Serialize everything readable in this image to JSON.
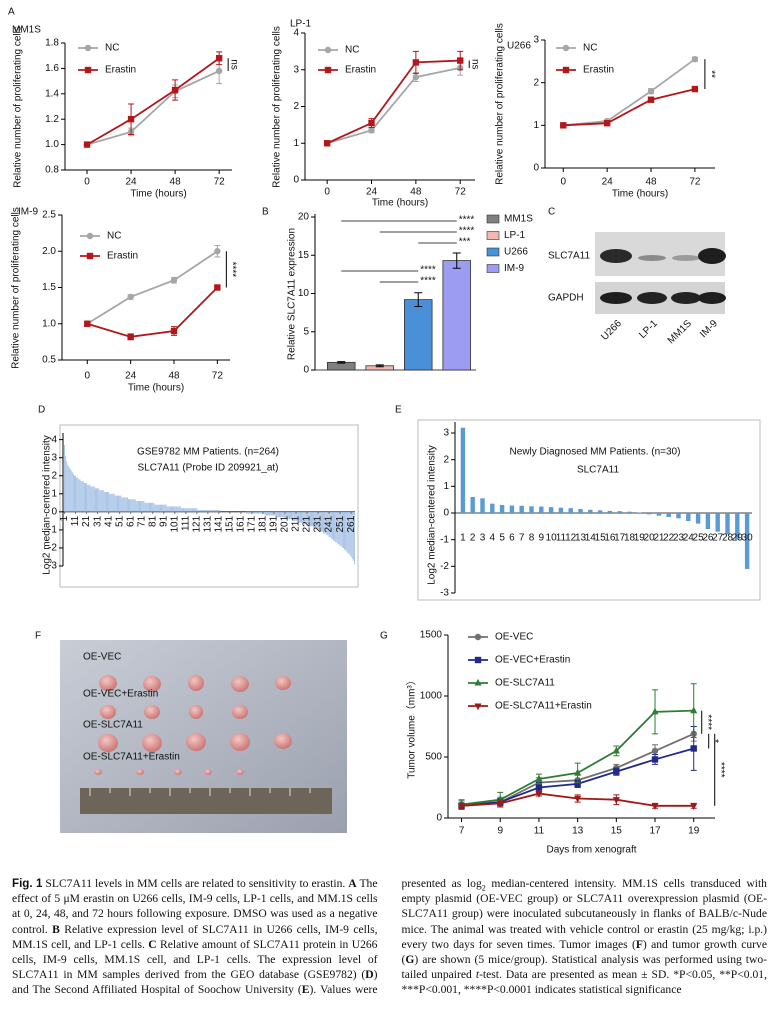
{
  "panels": [
    "A",
    "B",
    "C",
    "D",
    "E",
    "F",
    "G"
  ],
  "chart_data": [
    {
      "type": "line",
      "title": "MM1S",
      "xlabel": "Time (hours)",
      "ylabel": "Relative number of proliferating cells",
      "x": [
        0,
        24,
        48,
        72
      ],
      "xlim": [
        -12,
        79
      ],
      "xticks": [
        0,
        24,
        48,
        72
      ],
      "ylim": [
        0.8,
        1.8
      ],
      "yticks": [
        0.8,
        {
          "value": 1,
          "label": "1.0"
        },
        1.2,
        1.4,
        1.6,
        1.8
      ],
      "legend": "top-left",
      "series": [
        {
          "name": "NC",
          "color": "#a6a6a6",
          "marker": "circle",
          "values": [
            1,
            1.1,
            1.42,
            1.58
          ],
          "errors": [
            0.01,
            0.03,
            0.05,
            0.1
          ]
        },
        {
          "name": "Erastin",
          "color": "#b2181b",
          "marker": "square",
          "values": [
            1,
            1.2,
            1.43,
            1.68
          ],
          "errors": [
            0.01,
            0.12,
            0.08,
            0.05
          ]
        }
      ],
      "annotations": [
        "ns"
      ]
    },
    {
      "type": "line",
      "title": "LP-1",
      "xlabel": "Time (hours)",
      "ylabel": "Relative number of proliferating cells",
      "x": [
        0,
        24,
        48,
        72
      ],
      "xlim": [
        -12,
        80
      ],
      "xticks": [
        0,
        24,
        48,
        72
      ],
      "ylim": [
        0,
        4
      ],
      "yticks": [
        0,
        1,
        2,
        3,
        4
      ],
      "legend": "top-left",
      "series": [
        {
          "name": "NC",
          "color": "#a6a6a6",
          "marker": "circle",
          "values": [
            1,
            1.35,
            2.8,
            3.05
          ],
          "errors": [
            0.03,
            0.06,
            0.12,
            0.2
          ]
        },
        {
          "name": "Erastin",
          "color": "#b2181b",
          "marker": "square",
          "values": [
            1,
            1.55,
            3.2,
            3.25
          ],
          "errors": [
            0.03,
            0.12,
            0.3,
            0.25
          ]
        }
      ],
      "annotations": [
        "ns"
      ]
    },
    {
      "type": "line",
      "title": "U266",
      "xlabel": "Time (hours)",
      "ylabel": "Relative number of proliferating cells",
      "x": [
        0,
        24,
        48,
        72
      ],
      "xlim": [
        -10,
        83
      ],
      "xticks": [
        0,
        24,
        48,
        72
      ],
      "ylim": [
        0,
        3
      ],
      "yticks": [
        0,
        1,
        2,
        3
      ],
      "legend": "top-left",
      "series": [
        {
          "name": "NC",
          "color": "#a6a6a6",
          "marker": "circle",
          "values": [
            1,
            1.1,
            1.8,
            2.55
          ],
          "errors": [
            0.02,
            0.04,
            0.06,
            0.05
          ]
        },
        {
          "name": "Erastin",
          "color": "#b2181b",
          "marker": "square",
          "values": [
            1,
            1.05,
            1.6,
            1.85
          ],
          "errors": [
            0.02,
            0.04,
            0.03,
            0.03
          ]
        }
      ],
      "annotations": [
        "**"
      ]
    },
    {
      "type": "line",
      "title": "IM-9",
      "xlabel": "Time (hours)",
      "ylabel": "Relative number of proliferating cells",
      "x": [
        0,
        24,
        48,
        72
      ],
      "xlim": [
        -14,
        79
      ],
      "xticks": [
        0,
        24,
        48,
        72
      ],
      "ylim": [
        0.5,
        2.5
      ],
      "yticks": [
        0.5,
        {
          "value": 1,
          "label": "1.0"
        },
        1.5,
        {
          "value": 2,
          "label": "2.0"
        },
        2.5
      ],
      "legend": "top-left",
      "series": [
        {
          "name": "NC",
          "color": "#a6a6a6",
          "marker": "circle",
          "values": [
            1,
            1.37,
            1.6,
            2.0
          ],
          "errors": [
            0.02,
            0.03,
            0.04,
            0.08
          ]
        },
        {
          "name": "Erastin",
          "color": "#b2181b",
          "marker": "square",
          "values": [
            1,
            0.82,
            0.9,
            1.5
          ],
          "errors": [
            0.02,
            0.04,
            0.06,
            0.03
          ]
        }
      ],
      "annotations": [
        "****"
      ]
    },
    {
      "type": "bar",
      "ylabel": "Relative SLC7A11 expression",
      "categories": [
        "MM1S",
        "LP-1",
        "U266",
        "IM-9"
      ],
      "values": [
        1,
        0.55,
        9.2,
        14.3
      ],
      "errors": [
        0.1,
        0.12,
        0.9,
        1.0
      ],
      "colors": [
        "#7f7f7f",
        "#f4b6b0",
        "#4a90d9",
        "#9b9cf2"
      ],
      "ylim": [
        0,
        20
      ],
      "yticks": [
        0,
        5,
        10,
        15,
        20
      ],
      "legend": "right",
      "annotations": [
        "****",
        "****",
        "***",
        "****",
        "****"
      ]
    },
    {
      "type": "bar",
      "ylabel": "Log2 median-centered intensity",
      "annotations": [
        "GSE9782 MM Patients. (n=264)",
        "SLC7A11 (Probe ID 209921_at)"
      ],
      "color": "#9dbbe3",
      "xlim": [
        0.5,
        264.5
      ],
      "xticks": [
        1,
        11,
        21,
        31,
        41,
        51,
        61,
        71,
        81,
        91,
        101,
        111,
        121,
        131,
        141,
        151,
        161,
        171,
        181,
        191,
        201,
        211,
        221,
        231,
        241,
        251,
        261
      ],
      "ylim": [
        -3,
        4.2
      ],
      "yticks": [
        4,
        3,
        2,
        1,
        0,
        -1,
        -2,
        -3
      ],
      "x": [
        1,
        2,
        3,
        4,
        5,
        6,
        7,
        8,
        9,
        10,
        11,
        12,
        13,
        14,
        15,
        16,
        17,
        18,
        19,
        20,
        21,
        22,
        23,
        24,
        25,
        26,
        27,
        28,
        29,
        30,
        31,
        32,
        33,
        34,
        35,
        36,
        37,
        38,
        39,
        40,
        41,
        42,
        43,
        44,
        45,
        46,
        47,
        48,
        49,
        50,
        51,
        52,
        53,
        54,
        55,
        56,
        57,
        58,
        59,
        60,
        61,
        62,
        63,
        64,
        65,
        66,
        67,
        68,
        69,
        70,
        71,
        72,
        73,
        74,
        75,
        76,
        77,
        78,
        79,
        80,
        81,
        82,
        83,
        84,
        85,
        86,
        87,
        88,
        89,
        90,
        91,
        92,
        93,
        94,
        95,
        96,
        97,
        98,
        99,
        100,
        101,
        102,
        103,
        104,
        105,
        106,
        107,
        108,
        109,
        110,
        111,
        112,
        113,
        114,
        115,
        116,
        117,
        118,
        119,
        120,
        121,
        122,
        123,
        124,
        125,
        126,
        127,
        128,
        129,
        130,
        131,
        132,
        133,
        134,
        135,
        136,
        137,
        138,
        139,
        140,
        141,
        142,
        143,
        144,
        145,
        146,
        147,
        148,
        149,
        150,
        151,
        152,
        153,
        154,
        155,
        156,
        157,
        158,
        159,
        160,
        161,
        162,
        163,
        164,
        165,
        166,
        167,
        168,
        169,
        170,
        171,
        172,
        173,
        174,
        175,
        176,
        177,
        178,
        179,
        180,
        181,
        182,
        183,
        184,
        185,
        186,
        187,
        188,
        189,
        190,
        191,
        192,
        193,
        194,
        195,
        196,
        197,
        198,
        199,
        200,
        201,
        202,
        203,
        204,
        205,
        206,
        207,
        208,
        209,
        210,
        211,
        212,
        213,
        214,
        215,
        216,
        217,
        218,
        219,
        220,
        221,
        222,
        223,
        224,
        225,
        226,
        227,
        228,
        229,
        230,
        231,
        232,
        233,
        234,
        235,
        236,
        237,
        238,
        239,
        240,
        241,
        242,
        243,
        244,
        245,
        246,
        247,
        248,
        249,
        250,
        251,
        252,
        253,
        254,
        255,
        256,
        257,
        258,
        259,
        260,
        261,
        262,
        263,
        264
      ],
      "values": [
        3.7,
        3.1,
        2.8,
        2.6,
        2.5,
        2.4,
        2.3,
        2.2,
        2.1,
        2.0,
        2.0,
        1.9,
        1.9,
        1.8,
        1.8,
        1.7,
        1.7,
        1.7,
        1.6,
        1.6,
        1.6,
        1.5,
        1.5,
        1.5,
        1.4,
        1.4,
        1.4,
        1.4,
        1.3,
        1.3,
        1.3,
        1.3,
        1.2,
        1.2,
        1.2,
        1.2,
        1.1,
        1.1,
        1.1,
        1.1,
        1.1,
        1.0,
        1.0,
        1.0,
        1.0,
        1.0,
        0.9,
        0.9,
        0.9,
        0.9,
        0.9,
        0.9,
        0.8,
        0.8,
        0.8,
        0.8,
        0.8,
        0.8,
        0.7,
        0.7,
        0.7,
        0.7,
        0.7,
        0.7,
        0.7,
        0.6,
        0.6,
        0.6,
        0.6,
        0.6,
        0.6,
        0.6,
        0.6,
        0.5,
        0.5,
        0.5,
        0.5,
        0.5,
        0.5,
        0.5,
        0.5,
        0.5,
        0.4,
        0.4,
        0.4,
        0.4,
        0.4,
        0.4,
        0.4,
        0.4,
        0.4,
        0.4,
        0.4,
        0.3,
        0.3,
        0.3,
        0.3,
        0.3,
        0.3,
        0.3,
        0.3,
        0.3,
        0.3,
        0.3,
        0.3,
        0.3,
        0.2,
        0.2,
        0.2,
        0.2,
        0.2,
        0.2,
        0.2,
        0.2,
        0.2,
        0.2,
        0.2,
        0.2,
        0.2,
        0.2,
        0.2,
        0.1,
        0.1,
        0.1,
        0.1,
        0.1,
        0.1,
        0.1,
        0.1,
        0.1,
        0.1,
        0.1,
        0.1,
        0.1,
        0.1,
        0.1,
        0.1,
        0.1,
        0.1,
        0.1,
        0.1,
        0.1,
        0,
        0,
        0,
        0,
        0,
        0,
        0,
        0,
        0,
        0,
        0,
        0,
        0,
        0,
        0,
        0,
        0,
        0,
        0,
        0,
        0,
        0,
        0,
        -0.1,
        -0.1,
        -0.1,
        -0.1,
        -0.1,
        -0.1,
        -0.1,
        -0.1,
        -0.1,
        -0.1,
        -0.1,
        -0.1,
        -0.1,
        -0.1,
        -0.1,
        -0.1,
        -0.1,
        -0.2,
        -0.2,
        -0.2,
        -0.2,
        -0.2,
        -0.2,
        -0.2,
        -0.2,
        -0.2,
        -0.2,
        -0.3,
        -0.3,
        -0.3,
        -0.3,
        -0.3,
        -0.3,
        -0.3,
        -0.3,
        -0.4,
        -0.4,
        -0.4,
        -0.4,
        -0.4,
        -0.4,
        -0.4,
        -0.5,
        -0.5,
        -0.5,
        -0.5,
        -0.5,
        -0.5,
        -0.6,
        -0.6,
        -0.6,
        -0.6,
        -0.6,
        -0.7,
        -0.7,
        -0.7,
        -0.7,
        -0.8,
        -0.8,
        -0.8,
        -0.8,
        -0.9,
        -0.9,
        -0.9,
        -1.0,
        -1.0,
        -1.0,
        -1.1,
        -1.1,
        -1.1,
        -1.2,
        -1.2,
        -1.2,
        -1.3,
        -1.3,
        -1.4,
        -1.4,
        -1.5,
        -1.5,
        -1.6,
        -1.6,
        -1.7,
        -1.7,
        -1.8,
        -1.8,
        -1.9,
        -1.9,
        -2.0,
        -2.0,
        -2.1,
        -2.1,
        -2.2,
        -2.3,
        -2.3,
        -2.4,
        -2.5,
        -2.6,
        -2.7,
        -2.9
      ]
    },
    {
      "type": "bar",
      "ylabel": "Log2 median-centered intensity",
      "annotations": [
        "Newly Diagnosed MM Patients. (n=30)",
        "SLC7A11"
      ],
      "color": "#5b9bd5",
      "categories": [
        "1",
        "2",
        "3",
        "4",
        "5",
        "6",
        "7",
        "8",
        "9",
        "10",
        "11",
        "12",
        "13",
        "14",
        "15",
        "16",
        "17",
        "18",
        "19",
        "20",
        "21",
        "22",
        "23",
        "24",
        "25",
        "26",
        "27",
        "28",
        "29",
        "30"
      ],
      "values": [
        3.2,
        0.6,
        0.55,
        0.35,
        0.3,
        0.28,
        0.27,
        0.25,
        0.24,
        0.22,
        0.2,
        0.18,
        0.15,
        0.12,
        0.1,
        0.08,
        0.07,
        0.05,
        0.02,
        -0.05,
        -0.1,
        -0.15,
        -0.2,
        -0.3,
        -0.4,
        -0.6,
        -0.7,
        -0.8,
        -1.0,
        -2.1
      ],
      "ylim": [
        -3,
        3.3
      ],
      "yticks": [
        3,
        2,
        1,
        0,
        -1,
        -2,
        -3
      ]
    },
    {
      "type": "line",
      "xlabel": "Days from xenograft",
      "ylabel": "Tumor volume（mm³）",
      "x": [
        7,
        9,
        11,
        13,
        15,
        17,
        19
      ],
      "xlim": [
        6.3,
        20.1
      ],
      "xticks": [
        7,
        9,
        11,
        13,
        15,
        17,
        19
      ],
      "ylim": [
        0,
        1500
      ],
      "yticks": [
        0,
        500,
        1000,
        1500
      ],
      "legend": "top-left",
      "series": [
        {
          "name": "OE-VEC",
          "color": "#707070",
          "marker": "circle",
          "values": [
            110,
            130,
            290,
            310,
            410,
            550,
            690
          ],
          "errors": [
            30,
            40,
            40,
            40,
            30,
            50,
            60
          ]
        },
        {
          "name": "OE-VEC+Erastin",
          "color": "#1f2a8c",
          "marker": "square",
          "values": [
            100,
            130,
            250,
            280,
            380,
            480,
            570
          ],
          "errors": [
            20,
            30,
            40,
            30,
            30,
            40,
            180
          ]
        },
        {
          "name": "OE-SLC7A11",
          "color": "#2e7d32",
          "marker": "triangle",
          "values": [
            110,
            150,
            320,
            370,
            550,
            870,
            880
          ],
          "errors": [
            40,
            60,
            40,
            80,
            40,
            180,
            220
          ]
        },
        {
          "name": "OE-SLC7A11+Erastin",
          "color": "#a01919",
          "marker": "triangle-down",
          "values": [
            100,
            120,
            200,
            160,
            150,
            100,
            100
          ],
          "errors": [
            20,
            30,
            20,
            30,
            40,
            20,
            20
          ]
        }
      ],
      "annotations": [
        "****",
        "*",
        "****"
      ]
    }
  ],
  "blot": {
    "rows": [
      "SLC7A11",
      "GAPDH"
    ],
    "lanes": [
      "U266",
      "LP-1",
      "MM1S",
      "IM-9"
    ]
  },
  "photo": {
    "groups": [
      "OE-VEC",
      "OE-VEC+Erastin",
      "OE-SLC7A11",
      "OE-SLC7A11+Erastin"
    ]
  },
  "caption": {
    "label": "Fig. 1",
    "segments": [
      {
        "text": " SLC7A11 levels in MM cells are related to sensitivity to erastin. "
      },
      {
        "text": "A",
        "style": "bold"
      },
      {
        "text": " The effect of 5 μM erastin on U266 cells, IM-9 cells, LP-1 cells, and MM.1S cells at 0, 24, 48, and 72 hours following exposure. DMSO was used as a negative control. "
      },
      {
        "text": "B",
        "style": "bold"
      },
      {
        "text": " Relative expression level of SLC7A11 in U266 cells, IM-9 cells, MM.1S cell, and LP-1 cells. "
      },
      {
        "text": "C",
        "style": "bold"
      },
      {
        "text": " Relative amount of SLC7A11 protein in U266 cells, IM-9 cells, MM.1S cell, and LP-1 cells. The expression level of SLC7A11 in MM samples derived from the GEO database (GSE9782) ("
      },
      {
        "text": "D",
        "style": "bold"
      },
      {
        "text": ") and The Second Affiliated Hospital of Soochow University ("
      },
      {
        "text": "E",
        "style": "bold"
      },
      {
        "text": "). Values were presented as log"
      },
      {
        "text": "2",
        "style": "sub"
      },
      {
        "text": " median-centered intensity. MM.1S cells transduced with empty plasmid (OE-VEC group) or SLC7A11 overexpression plasmid (OE-SLC7A11 group) were inoculated subcutaneously in flanks of BALB/c-Nude mice. The animal was treated with vehicle control or erastin (25 mg/kg; i.p.) every two days for seven times. Tumor images ("
      },
      {
        "text": "F",
        "style": "bold"
      },
      {
        "text": ") and tumor growth curve ("
      },
      {
        "text": "G",
        "style": "bold"
      },
      {
        "text": ") are shown (5 mice/group). Statistical analysis was performed using two-tailed unpaired "
      },
      {
        "text": "t",
        "style": "italic"
      },
      {
        "text": "-test. Data are presented as mean ± SD. *P<0.05, **P<0.01, ***P<0.001, ****P<0.0001 indicates statistical significance"
      }
    ]
  }
}
